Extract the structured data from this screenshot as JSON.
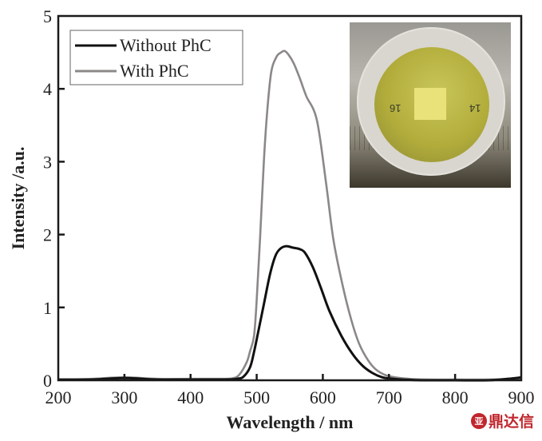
{
  "chart_data": {
    "type": "line",
    "title": "",
    "xlabel": "Wavelength / nm",
    "ylabel": "Intensity /a.u.",
    "xlim": [
      200,
      900
    ],
    "ylim": [
      0,
      5
    ],
    "xticks": [
      200,
      300,
      400,
      500,
      600,
      700,
      800,
      900
    ],
    "yticks": [
      0,
      1,
      2,
      3,
      4,
      5
    ],
    "grid": false,
    "legend_position": "top-left",
    "series": [
      {
        "name": "Without PhC",
        "color": "#111111",
        "x": [
          200,
          250,
          300,
          350,
          400,
          450,
          470,
          480,
          490,
          496,
          502,
          511,
          520,
          528,
          535,
          544,
          555,
          565,
          573,
          585,
          597,
          610,
          628,
          645,
          660,
          675,
          690,
          705,
          720,
          750,
          800,
          850,
          880,
          900
        ],
        "y": [
          0.01,
          0.01,
          0.03,
          0.01,
          0.01,
          0.01,
          0.02,
          0.05,
          0.18,
          0.39,
          0.65,
          1.05,
          1.45,
          1.7,
          1.8,
          1.84,
          1.82,
          1.8,
          1.75,
          1.55,
          1.27,
          0.95,
          0.61,
          0.36,
          0.2,
          0.1,
          0.04,
          0.02,
          0.01,
          0.0,
          0.0,
          0.0,
          0.02,
          0.04
        ]
      },
      {
        "name": "With PhC",
        "color": "#8c8888",
        "x": [
          200,
          250,
          300,
          350,
          400,
          450,
          465,
          474,
          485,
          490,
          496,
          500,
          505,
          511,
          516,
          522,
          530,
          537,
          542,
          548,
          556,
          565,
          575,
          591,
          605,
          616,
          630,
          643,
          655,
          668,
          680,
          695,
          710,
          730,
          760,
          800,
          850,
          900
        ],
        "y": [
          0.01,
          0.02,
          0.04,
          0.02,
          0.02,
          0.02,
          0.03,
          0.08,
          0.25,
          0.4,
          0.61,
          1.1,
          1.93,
          3.03,
          3.7,
          4.23,
          4.44,
          4.5,
          4.52,
          4.47,
          4.35,
          4.15,
          3.9,
          3.57,
          2.7,
          1.93,
          1.3,
          0.83,
          0.5,
          0.28,
          0.15,
          0.07,
          0.04,
          0.02,
          0.01,
          0.01,
          0.01,
          0.02
        ]
      }
    ],
    "inset": {
      "type": "photo",
      "description": "Photograph of a yellow-tinted film sample in a plastic petri dish over a ruler",
      "visible_text": [
        "14",
        "16"
      ]
    }
  },
  "watermark": {
    "logo_glyph": "亚",
    "text": "鼎达信"
  }
}
